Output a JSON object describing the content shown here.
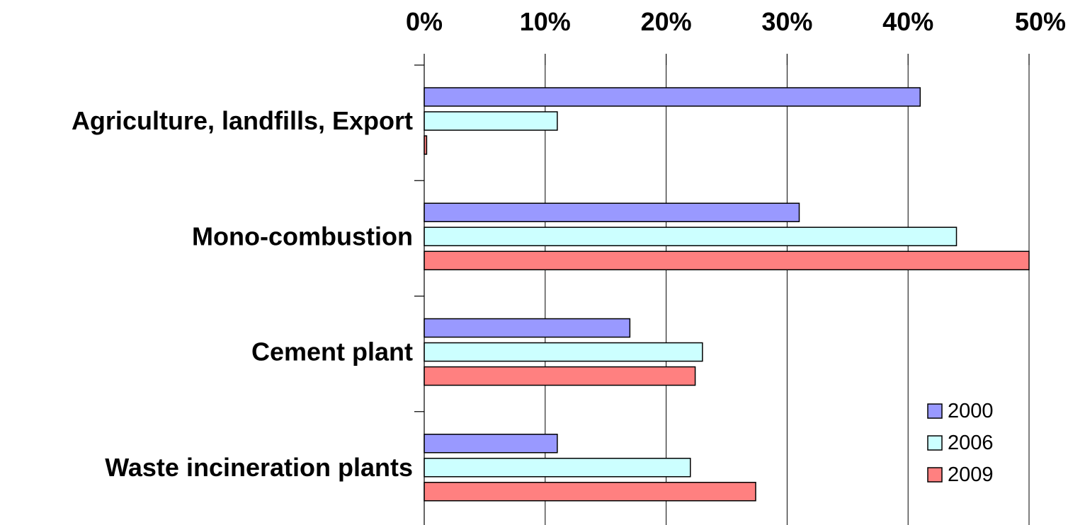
{
  "chart_data": {
    "type": "bar",
    "orientation": "horizontal",
    "title": "",
    "xlabel": "",
    "ylabel": "",
    "xlim": [
      0,
      50
    ],
    "x_ticks": [
      "0%",
      "10%",
      "20%",
      "30%",
      "40%",
      "50%"
    ],
    "x_tick_values": [
      0,
      10,
      20,
      30,
      40,
      50
    ],
    "x_axis_position": "top",
    "grid": true,
    "legend_position": "bottom-right",
    "categories": [
      "Agriculture, landfills, Export",
      "Mono-combustion",
      "Cement plant",
      "Waste incineration plants"
    ],
    "series": [
      {
        "name": "2000",
        "color": "#9999ff",
        "values": [
          41,
          31,
          17,
          11
        ]
      },
      {
        "name": "2006",
        "color": "#ccffff",
        "values": [
          11,
          44,
          23,
          22
        ]
      },
      {
        "name": "2009",
        "color": "#ff8080",
        "values": [
          0.2,
          50,
          22.4,
          27.4
        ]
      }
    ]
  }
}
